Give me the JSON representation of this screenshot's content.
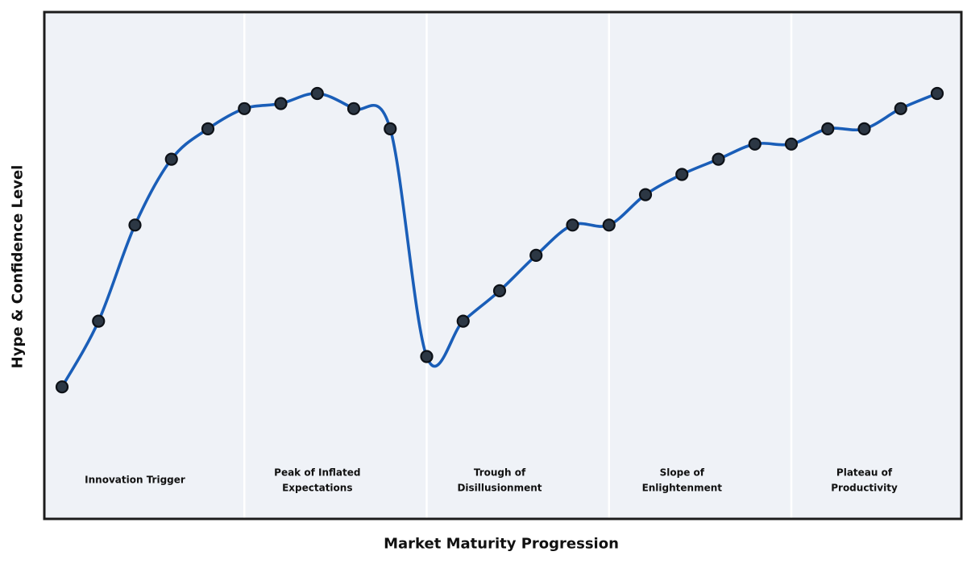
{
  "chart_data": {
    "type": "line",
    "xlabel": "Market Maturity Progression",
    "ylabel": "Hype & Confidence Level",
    "x": [
      1,
      2,
      3,
      4,
      5,
      6,
      7,
      8,
      9,
      10,
      11,
      12,
      13,
      14,
      15,
      16,
      17,
      18,
      19,
      20,
      21,
      22,
      23,
      24,
      25
    ],
    "values": [
      26,
      39,
      58,
      71,
      77,
      81,
      82,
      84,
      81,
      77,
      32,
      39,
      45,
      52,
      58,
      58,
      64,
      68,
      71,
      74,
      74,
      77,
      77,
      81,
      84
    ],
    "ylim": [
      0,
      100
    ],
    "grid": false,
    "legend": "none",
    "marker": "circle",
    "curve": "smooth-spline",
    "phases": [
      {
        "name": "Innovation Trigger",
        "lines": [
          "Innovation Trigger"
        ],
        "point_range": [
          1,
          5
        ]
      },
      {
        "name": "Peak of Inflated Expectations",
        "lines": [
          "Peak of Inflated",
          "Expectations"
        ],
        "point_range": [
          6,
          10
        ]
      },
      {
        "name": "Trough of Disillusionment",
        "lines": [
          "Trough of",
          "Disillusionment"
        ],
        "point_range": [
          11,
          15
        ]
      },
      {
        "name": "Slope of Enlightenment",
        "lines": [
          "Slope of",
          "Enlightenment"
        ],
        "point_range": [
          16,
          20
        ]
      },
      {
        "name": "Plateau of Productivity",
        "lines": [
          "Plateau of",
          "Productivity"
        ],
        "point_range": [
          21,
          25
        ]
      }
    ],
    "colors": {
      "line": "#1a5eb8",
      "marker_fill": "#2c3744",
      "marker_edge": "#0d1117",
      "panel_background": "#eff2f7",
      "phase_separator": "#ffffff",
      "border": "#1c1c1c",
      "text": "#111111",
      "figure_background": "#ffffff"
    }
  }
}
